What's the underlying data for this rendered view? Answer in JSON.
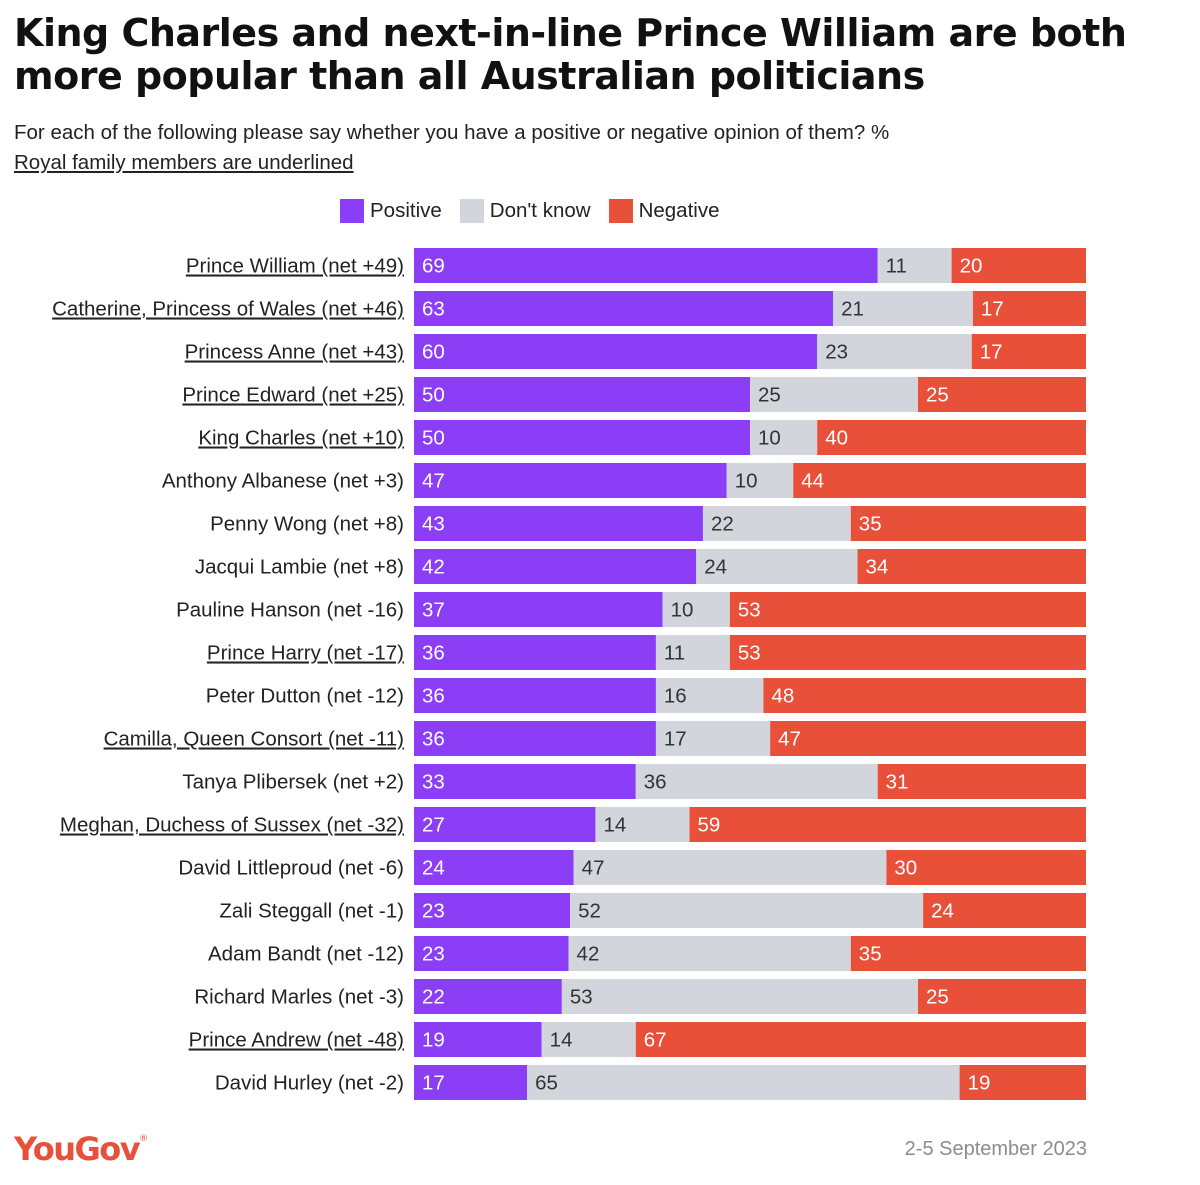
{
  "header": {
    "title": "King Charles and next-in-line Prince William are both more popular than all Australian politicians",
    "subtitle": "For each of the following please say whether you have a positive or negative opinion of them? %",
    "note": "Royal family members are underlined"
  },
  "footer": {
    "brand": "YouGov",
    "date": "2-5 September 2023"
  },
  "colors": {
    "positive": "#8b3ef5",
    "dont_know": "#d3d5dc",
    "negative": "#e8503a"
  },
  "chart_data": {
    "type": "bar",
    "orientation": "horizontal",
    "stacked": true,
    "legend_position": "top",
    "series": [
      {
        "name": "Positive",
        "key": "positive"
      },
      {
        "name": "Don't know",
        "key": "dont_know"
      },
      {
        "name": "Negative",
        "key": "negative"
      }
    ],
    "rows": [
      {
        "label": "Prince William (net +49)",
        "royal": true,
        "positive": 69,
        "dont_know": 11,
        "negative": 20
      },
      {
        "label": "Catherine, Princess of Wales (net +46)",
        "royal": true,
        "positive": 63,
        "dont_know": 21,
        "negative": 17
      },
      {
        "label": "Princess Anne (net +43)",
        "royal": true,
        "positive": 60,
        "dont_know": 23,
        "negative": 17
      },
      {
        "label": "Prince Edward (net +25)",
        "royal": true,
        "positive": 50,
        "dont_know": 25,
        "negative": 25
      },
      {
        "label": "King Charles (net +10)",
        "royal": true,
        "positive": 50,
        "dont_know": 10,
        "negative": 40
      },
      {
        "label": "Anthony Albanese (net +3)",
        "royal": false,
        "positive": 47,
        "dont_know": 10,
        "negative": 44
      },
      {
        "label": "Penny Wong (net +8)",
        "royal": false,
        "positive": 43,
        "dont_know": 22,
        "negative": 35
      },
      {
        "label": "Jacqui Lambie (net +8)",
        "royal": false,
        "positive": 42,
        "dont_know": 24,
        "negative": 34
      },
      {
        "label": "Pauline Hanson (net -16)",
        "royal": false,
        "positive": 37,
        "dont_know": 10,
        "negative": 53
      },
      {
        "label": "Prince Harry (net -17)",
        "royal": true,
        "positive": 36,
        "dont_know": 11,
        "negative": 53
      },
      {
        "label": "Peter Dutton (net -12)",
        "royal": false,
        "positive": 36,
        "dont_know": 16,
        "negative": 48
      },
      {
        "label": "Camilla, Queen Consort (net -11)",
        "royal": true,
        "positive": 36,
        "dont_know": 17,
        "negative": 47
      },
      {
        "label": "Tanya Plibersek (net +2)",
        "royal": false,
        "positive": 33,
        "dont_know": 36,
        "negative": 31
      },
      {
        "label": "Meghan, Duchess of Sussex (net -32)",
        "royal": true,
        "positive": 27,
        "dont_know": 14,
        "negative": 59
      },
      {
        "label": "David Littleproud (net -6)",
        "royal": false,
        "positive": 24,
        "dont_know": 47,
        "negative": 30
      },
      {
        "label": "Zali Steggall (net -1)",
        "royal": false,
        "positive": 23,
        "dont_know": 52,
        "negative": 24
      },
      {
        "label": "Adam Bandt (net -12)",
        "royal": false,
        "positive": 23,
        "dont_know": 42,
        "negative": 35
      },
      {
        "label": "Richard Marles (net -3)",
        "royal": false,
        "positive": 22,
        "dont_know": 53,
        "negative": 25
      },
      {
        "label": "Prince Andrew (net -48)",
        "royal": true,
        "positive": 19,
        "dont_know": 14,
        "negative": 67
      },
      {
        "label": "David Hurley (net -2)",
        "royal": false,
        "positive": 17,
        "dont_know": 65,
        "negative": 19
      }
    ]
  }
}
